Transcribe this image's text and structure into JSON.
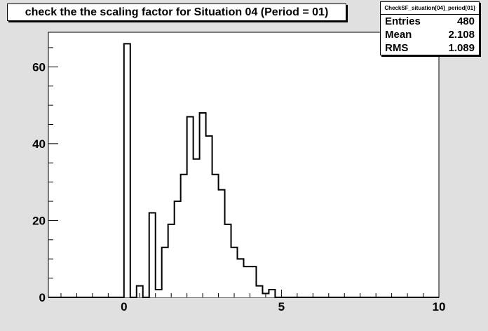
{
  "title": "check the the scaling factor for Situation 04 (Period = 01)",
  "stats": {
    "name": "CheckSF_situation[04]_period[01]",
    "entries_label": "Entries",
    "entries_value": "480",
    "mean_label": "Mean",
    "mean_value": "2.108",
    "rms_label": "RMS",
    "rms_value": "1.089"
  },
  "chart_data": {
    "type": "bar",
    "xlim": [
      -2.4,
      10.0
    ],
    "ylim": [
      0,
      69
    ],
    "bin_width": 0.2,
    "x_ticks": [
      0,
      5,
      10
    ],
    "x_tick_labels": [
      "0",
      "5",
      "10"
    ],
    "y_ticks": [
      0,
      20,
      40,
      60
    ],
    "y_tick_labels": [
      "0",
      "20",
      "40",
      "60"
    ],
    "bins": [
      {
        "x_low": 0.0,
        "value": 66
      },
      {
        "x_low": 0.2,
        "value": 0
      },
      {
        "x_low": 0.4,
        "value": 3
      },
      {
        "x_low": 0.6,
        "value": 0
      },
      {
        "x_low": 0.8,
        "value": 22
      },
      {
        "x_low": 1.0,
        "value": 2
      },
      {
        "x_low": 1.2,
        "value": 13
      },
      {
        "x_low": 1.4,
        "value": 19
      },
      {
        "x_low": 1.6,
        "value": 25
      },
      {
        "x_low": 1.8,
        "value": 32
      },
      {
        "x_low": 2.0,
        "value": 47
      },
      {
        "x_low": 2.2,
        "value": 36
      },
      {
        "x_low": 2.4,
        "value": 48
      },
      {
        "x_low": 2.6,
        "value": 42
      },
      {
        "x_low": 2.8,
        "value": 32
      },
      {
        "x_low": 3.0,
        "value": 28
      },
      {
        "x_low": 3.2,
        "value": 19
      },
      {
        "x_low": 3.4,
        "value": 13
      },
      {
        "x_low": 3.6,
        "value": 10
      },
      {
        "x_low": 3.8,
        "value": 8
      },
      {
        "x_low": 4.0,
        "value": 8
      },
      {
        "x_low": 4.2,
        "value": 3
      },
      {
        "x_low": 4.4,
        "value": 1
      },
      {
        "x_low": 4.6,
        "value": 2
      }
    ]
  }
}
